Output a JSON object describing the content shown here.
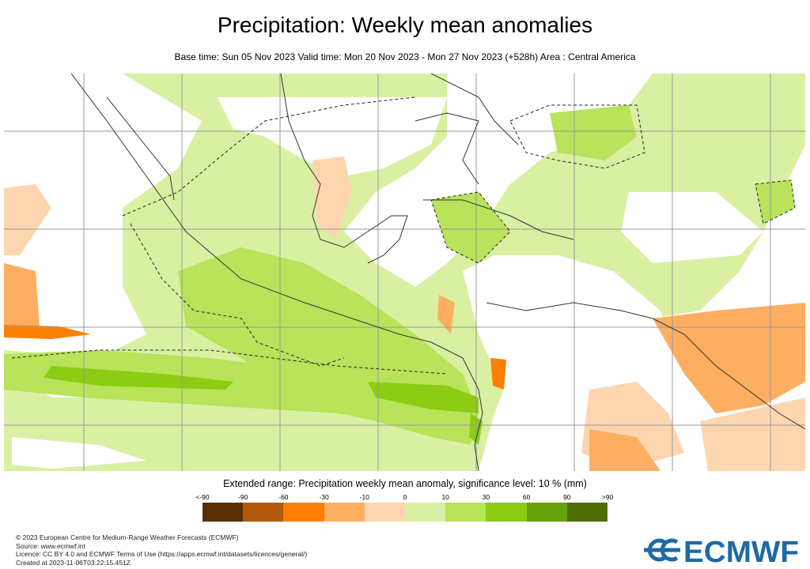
{
  "title": "Precipitation: Weekly mean anomalies",
  "subtitle": "Base time: Sun 05 Nov 2023 Valid time: Mon 20 Nov 2023 - Mon 27 Nov 2023 (+528h) Area : Central America",
  "legend": {
    "title": "Extended range: Precipitation weekly mean anomaly, significance level: 10 % (mm)",
    "labels": [
      "<-90",
      "-90",
      "-60",
      "-30",
      "-10",
      "0",
      "10",
      "30",
      "60",
      "90",
      ">90"
    ],
    "colors": [
      "#5a2d05",
      "#b05a0a",
      "#ff8000",
      "#fdae61",
      "#fdd6b0",
      "#d9f0a3",
      "#b8e35a",
      "#8ccc12",
      "#66a00a",
      "#4d6e05"
    ]
  },
  "footer": {
    "lines": [
      "© 2023 European Centre for Medium-Range Weather Forecasts (ECMWF)",
      "Source: www.ecmwf.int",
      "Licence: CC BY 4.0 and ECMWF Terms of Use (https://apps.ecmwf.int/datasets/licences/general/)",
      "Created at 2023-11-06T03:22:15.451Z"
    ]
  },
  "logo": {
    "text": "ECMWF",
    "color": "#1f6aa5"
  }
}
